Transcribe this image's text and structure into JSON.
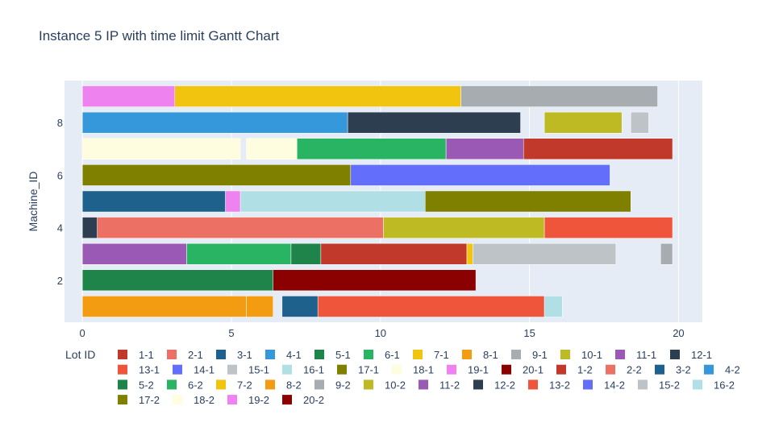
{
  "chart_data": {
    "type": "gantt",
    "title": "Instance 5 IP with time limit Gantt Chart",
    "xlabel": "",
    "ylabel": "Machine_ID",
    "xlim": [
      -0.6,
      20.8
    ],
    "ylim": [
      0.4,
      9.6
    ],
    "xticks": [
      0,
      5,
      10,
      15,
      20
    ],
    "yticks": [
      2,
      4,
      6,
      8
    ],
    "grid": true,
    "legend": {
      "title": "Lot ID",
      "placement": "bottom"
    },
    "lots": [
      {
        "name": "1-1",
        "color": "#C0392B"
      },
      {
        "name": "2-1",
        "color": "#EC7063"
      },
      {
        "name": "3-1",
        "color": "#1F618D"
      },
      {
        "name": "4-1",
        "color": "#3498DB"
      },
      {
        "name": "5-1",
        "color": "#1E8449"
      },
      {
        "name": "6-1",
        "color": "#28B463"
      },
      {
        "name": "7-1",
        "color": "#F1C40F"
      },
      {
        "name": "8-1",
        "color": "#F39C12"
      },
      {
        "name": "9-1",
        "color": "#A6ACAF"
      },
      {
        "name": "10-1",
        "color": "#BDBA23"
      },
      {
        "name": "11-1",
        "color": "#9B59B6"
      },
      {
        "name": "12-1",
        "color": "#2C3E50"
      },
      {
        "name": "13-1",
        "color": "#EF553B"
      },
      {
        "name": "14-1",
        "color": "#636EFA"
      },
      {
        "name": "15-1",
        "color": "#BDC3C7"
      },
      {
        "name": "16-1",
        "color": "#B0DFE5"
      },
      {
        "name": "17-1",
        "color": "#808000"
      },
      {
        "name": "18-1",
        "color": "#FFFDE0"
      },
      {
        "name": "19-1",
        "color": "#EE82EE"
      },
      {
        "name": "20-1",
        "color": "#8B0000"
      },
      {
        "name": "1-2",
        "color": "#C0392B"
      },
      {
        "name": "2-2",
        "color": "#EC7063"
      },
      {
        "name": "3-2",
        "color": "#1F618D"
      },
      {
        "name": "4-2",
        "color": "#3498DB"
      },
      {
        "name": "5-2",
        "color": "#1E8449"
      },
      {
        "name": "6-2",
        "color": "#28B463"
      },
      {
        "name": "7-2",
        "color": "#F1C40F"
      },
      {
        "name": "8-2",
        "color": "#F39C12"
      },
      {
        "name": "9-2",
        "color": "#A6ACAF"
      },
      {
        "name": "10-2",
        "color": "#BDBA23"
      },
      {
        "name": "11-2",
        "color": "#9B59B6"
      },
      {
        "name": "12-2",
        "color": "#2C3E50"
      },
      {
        "name": "13-2",
        "color": "#EF553B"
      },
      {
        "name": "14-2",
        "color": "#636EFA"
      },
      {
        "name": "15-2",
        "color": "#BDC3C7"
      },
      {
        "name": "16-2",
        "color": "#B0DFE5"
      },
      {
        "name": "17-2",
        "color": "#808000"
      },
      {
        "name": "18-2",
        "color": "#FFFDE0"
      },
      {
        "name": "19-2",
        "color": "#EE82EE"
      },
      {
        "name": "20-2",
        "color": "#8B0000"
      }
    ],
    "tasks": [
      {
        "machine": 1,
        "lot": "8-1",
        "start": 0,
        "end": 5.5
      },
      {
        "machine": 1,
        "lot": "8-2",
        "start": 5.5,
        "end": 6.4
      },
      {
        "machine": 1,
        "lot": "3-2",
        "start": 6.7,
        "end": 7.9
      },
      {
        "machine": 1,
        "lot": "13-2",
        "start": 7.9,
        "end": 15.5
      },
      {
        "machine": 1,
        "lot": "16-2",
        "start": 15.5,
        "end": 16.1
      },
      {
        "machine": 2,
        "lot": "5-2",
        "start": 0,
        "end": 6.4
      },
      {
        "machine": 2,
        "lot": "20-2",
        "start": 6.4,
        "end": 13.2
      },
      {
        "machine": 3,
        "lot": "11-1",
        "start": 0,
        "end": 3.5
      },
      {
        "machine": 3,
        "lot": "6-2",
        "start": 3.5,
        "end": 7.0
      },
      {
        "machine": 3,
        "lot": "5-1",
        "start": 7.0,
        "end": 8.0
      },
      {
        "machine": 3,
        "lot": "1-1",
        "start": 8.0,
        "end": 12.9
      },
      {
        "machine": 3,
        "lot": "7-2",
        "start": 12.9,
        "end": 13.1
      },
      {
        "machine": 3,
        "lot": "15-1",
        "start": 13.1,
        "end": 17.9
      },
      {
        "machine": 3,
        "lot": "9-2",
        "start": 19.4,
        "end": 19.8
      },
      {
        "machine": 4,
        "lot": "12-1",
        "start": 0,
        "end": 0.5
      },
      {
        "machine": 4,
        "lot": "2-1",
        "start": 0.5,
        "end": 10.1
      },
      {
        "machine": 4,
        "lot": "10-1",
        "start": 10.1,
        "end": 15.5
      },
      {
        "machine": 4,
        "lot": "13-1",
        "start": 15.5,
        "end": 19.8
      },
      {
        "machine": 5,
        "lot": "3-1",
        "start": 0,
        "end": 4.8
      },
      {
        "machine": 5,
        "lot": "19-1",
        "start": 4.8,
        "end": 5.3
      },
      {
        "machine": 5,
        "lot": "16-1",
        "start": 5.3,
        "end": 11.5
      },
      {
        "machine": 5,
        "lot": "17-2",
        "start": 11.5,
        "end": 18.4
      },
      {
        "machine": 6,
        "lot": "17-1",
        "start": 0,
        "end": 9.0
      },
      {
        "machine": 6,
        "lot": "14-1",
        "start": 9.0,
        "end": 17.7
      },
      {
        "machine": 7,
        "lot": "18-1",
        "start": 0,
        "end": 5.3
      },
      {
        "machine": 7,
        "lot": "18-2",
        "start": 5.5,
        "end": 7.2
      },
      {
        "machine": 7,
        "lot": "6-1",
        "start": 7.2,
        "end": 12.2
      },
      {
        "machine": 7,
        "lot": "11-2",
        "start": 12.2,
        "end": 14.8
      },
      {
        "machine": 7,
        "lot": "1-2",
        "start": 14.8,
        "end": 19.8
      },
      {
        "machine": 8,
        "lot": "4-1",
        "start": 0,
        "end": 8.9
      },
      {
        "machine": 8,
        "lot": "12-2",
        "start": 8.9,
        "end": 14.7
      },
      {
        "machine": 8,
        "lot": "10-2",
        "start": 15.5,
        "end": 18.1
      },
      {
        "machine": 8,
        "lot": "15-2",
        "start": 18.4,
        "end": 19.0
      },
      {
        "machine": 9,
        "lot": "19-2",
        "start": 0,
        "end": 3.1
      },
      {
        "machine": 9,
        "lot": "7-1",
        "start": 3.1,
        "end": 12.7
      },
      {
        "machine": 9,
        "lot": "9-1",
        "start": 12.7,
        "end": 19.3
      }
    ]
  }
}
